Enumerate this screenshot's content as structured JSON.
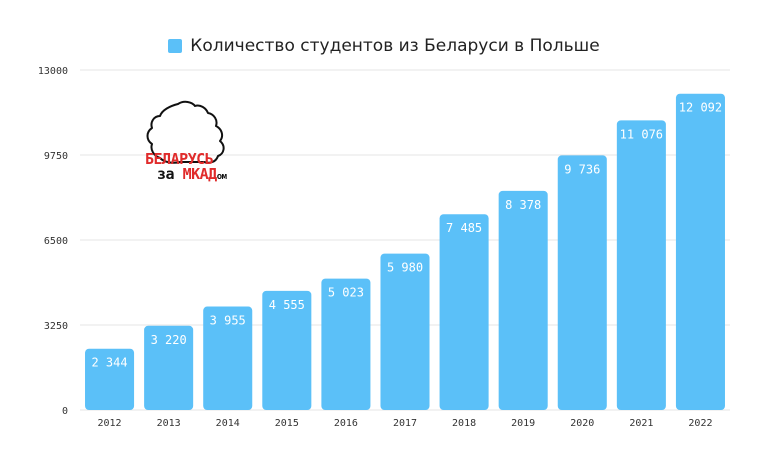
{
  "chart_data": {
    "type": "bar",
    "legend": [
      {
        "name": "Количество студентов из Беларуси в Польше",
        "color": "#5bc0f8"
      }
    ],
    "categories": [
      "2012",
      "2013",
      "2014",
      "2015",
      "2016",
      "2017",
      "2018",
      "2019",
      "2020",
      "2021",
      "2022"
    ],
    "series": [
      {
        "name": "Количество студентов из Беларуси в Польше",
        "values": [
          2344,
          3220,
          3955,
          4555,
          5023,
          5980,
          7485,
          8378,
          9736,
          11076,
          12092
        ],
        "labels": [
          "2 344",
          "3 220",
          "3 955",
          "4 555",
          "5 023",
          "5 980",
          "7 485",
          "8 378",
          "9 736",
          "11 076",
          "12 092"
        ]
      }
    ],
    "yticks": [
      "0",
      "3250",
      "6500",
      "9750",
      "13000"
    ],
    "ylim": [
      0,
      13000
    ],
    "grid": true,
    "bar_color": "#5bc0f8",
    "legend_position": "top-center"
  },
  "logo": {
    "line1": "БЕЛАРУСЬ",
    "line2_prefix": "за ",
    "line2_red": "МКАД",
    "line2_small": "ом"
  }
}
